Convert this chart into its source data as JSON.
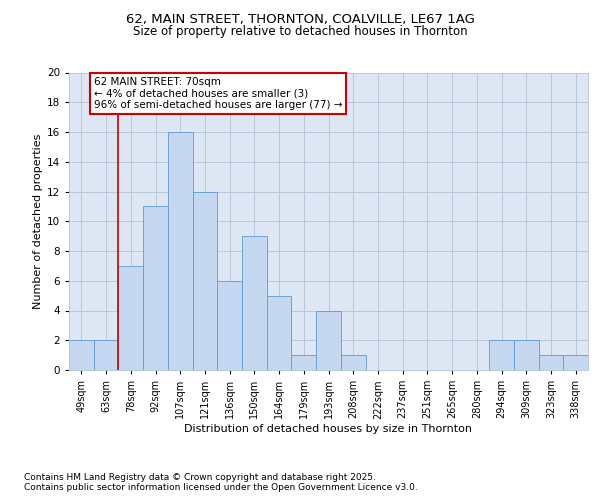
{
  "title_line1": "62, MAIN STREET, THORNTON, COALVILLE, LE67 1AG",
  "title_line2": "Size of property relative to detached houses in Thornton",
  "xlabel": "Distribution of detached houses by size in Thornton",
  "ylabel": "Number of detached properties",
  "categories": [
    "49sqm",
    "63sqm",
    "78sqm",
    "92sqm",
    "107sqm",
    "121sqm",
    "136sqm",
    "150sqm",
    "164sqm",
    "179sqm",
    "193sqm",
    "208sqm",
    "222sqm",
    "237sqm",
    "251sqm",
    "265sqm",
    "280sqm",
    "294sqm",
    "309sqm",
    "323sqm",
    "338sqm"
  ],
  "values": [
    2,
    2,
    7,
    11,
    16,
    12,
    6,
    9,
    5,
    1,
    4,
    1,
    0,
    0,
    0,
    0,
    0,
    2,
    2,
    1,
    1
  ],
  "bar_color": "#c5d8f0",
  "bar_edge_color": "#5b9bd5",
  "reference_line_color": "#cc0000",
  "reference_line_x": 1.5,
  "annotation_text": "62 MAIN STREET: 70sqm\n← 4% of detached houses are smaller (3)\n96% of semi-detached houses are larger (77) →",
  "annotation_box_edgecolor": "#cc0000",
  "ylim": [
    0,
    20
  ],
  "yticks": [
    0,
    2,
    4,
    6,
    8,
    10,
    12,
    14,
    16,
    18,
    20
  ],
  "grid_color": "#b8c8dc",
  "background_color": "#dde8f4",
  "footer_line1": "Contains HM Land Registry data © Crown copyright and database right 2025.",
  "footer_line2": "Contains public sector information licensed under the Open Government Licence v3.0.",
  "title_fontsize": 9.5,
  "subtitle_fontsize": 8.5,
  "axis_label_fontsize": 8,
  "tick_fontsize": 7,
  "annotation_fontsize": 7.5,
  "footer_fontsize": 6.5
}
